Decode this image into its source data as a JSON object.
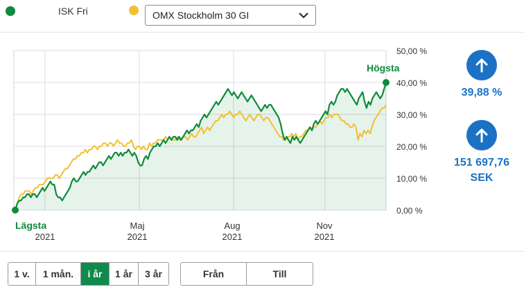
{
  "legend": {
    "series1": {
      "label": "ISK Fri",
      "color": "#0e8a3c"
    },
    "series2": {
      "color": "#f0c030"
    },
    "index_select": {
      "value": "OMX Stockholm 30 GI"
    }
  },
  "stats": {
    "percent": "39,88 %",
    "amount_line1": "151 697,76",
    "amount_line2": "SEK"
  },
  "chart_data": {
    "type": "line",
    "ylim": [
      0,
      50
    ],
    "y_ticks": [
      "50,00 %",
      "40,00 %",
      "30,00 %",
      "20,00 %",
      "10,00 %",
      "0,00 %"
    ],
    "x_ticks": [
      {
        "month": "",
        "year": "2021"
      },
      {
        "month": "Maj",
        "year": "2021"
      },
      {
        "month": "Aug",
        "year": "2021"
      },
      {
        "month": "Nov",
        "year": "2021"
      }
    ],
    "annotations": {
      "low": "Lägsta",
      "high": "Högsta"
    },
    "series": [
      {
        "color": "#0e8a3c",
        "values": [
          0,
          2,
          3,
          3,
          4,
          4,
          5,
          5,
          4,
          5,
          5,
          4,
          5,
          6,
          7,
          6,
          7,
          8,
          9,
          8,
          8,
          5,
          4,
          4,
          3,
          4,
          5,
          6,
          7,
          9,
          10,
          9,
          9,
          10,
          11,
          12,
          11,
          12,
          12,
          13,
          14,
          13,
          14,
          15,
          15,
          14,
          15,
          16,
          17,
          16,
          17,
          18,
          18,
          17,
          18,
          17,
          18,
          18,
          19,
          18,
          17,
          18,
          17,
          15,
          14,
          14,
          16,
          17,
          16,
          18,
          19,
          20,
          20,
          21,
          20,
          21,
          22,
          21,
          22,
          23,
          22,
          23,
          23,
          22,
          23,
          22,
          23,
          24,
          25,
          24,
          25,
          25,
          26,
          27,
          26,
          28,
          29,
          30,
          29,
          30,
          31,
          32,
          33,
          34,
          33,
          34,
          35,
          36,
          37,
          38,
          37,
          36,
          37,
          36,
          35,
          36,
          37,
          36,
          35,
          34,
          35,
          36,
          35,
          34,
          33,
          32,
          31,
          32,
          33,
          32,
          33,
          33,
          32,
          31,
          30,
          29,
          27,
          24,
          22,
          23,
          22,
          21,
          23,
          22,
          23,
          22,
          21,
          22,
          23,
          24,
          25,
          26,
          25,
          27,
          28,
          27,
          28,
          29,
          30,
          31,
          30,
          33,
          34,
          33,
          34,
          36,
          37,
          38,
          38,
          37,
          38,
          37,
          36,
          35,
          34,
          33,
          35,
          36,
          37,
          34,
          32,
          34,
          33,
          35,
          36,
          37,
          36,
          35,
          36,
          38,
          40
        ]
      },
      {
        "color": "#f0c030",
        "values": [
          0,
          2,
          4,
          5,
          5,
          6,
          6,
          6,
          5,
          6,
          7,
          7,
          8,
          8,
          8,
          9,
          10,
          10,
          10,
          10,
          11,
          11,
          10,
          11,
          12,
          13,
          13,
          14,
          15,
          16,
          16,
          17,
          17,
          18,
          18,
          19,
          18,
          19,
          19,
          20,
          20,
          19,
          20,
          20,
          21,
          21,
          20,
          21,
          21,
          20,
          21,
          22,
          21,
          21,
          20,
          20,
          21,
          21,
          22,
          20,
          19,
          20,
          20,
          19,
          20,
          19,
          19,
          21,
          20,
          21,
          21,
          22,
          22,
          22,
          22,
          23,
          22,
          23,
          22,
          22,
          22,
          23,
          22,
          22,
          23,
          23,
          22,
          23,
          24,
          23,
          23,
          24,
          25,
          26,
          24,
          25,
          26,
          25,
          26,
          27,
          28,
          28,
          29,
          30,
          29,
          30,
          30,
          31,
          30,
          29,
          30,
          30,
          31,
          30,
          29,
          28,
          29,
          30,
          29,
          28,
          29,
          30,
          30,
          29,
          28,
          29,
          29,
          28,
          27,
          26,
          25,
          24,
          23,
          23,
          22,
          22,
          23,
          23,
          24,
          23,
          24,
          22,
          23,
          23,
          24,
          25,
          25,
          26,
          25,
          26,
          26,
          27,
          28,
          27,
          28,
          29,
          29,
          30,
          29,
          30,
          30,
          30,
          29,
          28,
          28,
          27,
          27,
          26,
          26,
          27,
          26,
          22,
          24,
          23,
          25,
          24,
          25,
          24,
          26,
          28,
          29,
          30,
          31,
          32,
          32,
          33
        ]
      }
    ]
  },
  "range_buttons": [
    {
      "label": "1 v.",
      "active": false
    },
    {
      "label": "1 mån.",
      "active": false
    },
    {
      "label": "i år",
      "active": true
    },
    {
      "label": "1 år",
      "active": false
    },
    {
      "label": "3 år",
      "active": false
    }
  ],
  "date_buttons": {
    "from": "Från",
    "to": "Till"
  }
}
